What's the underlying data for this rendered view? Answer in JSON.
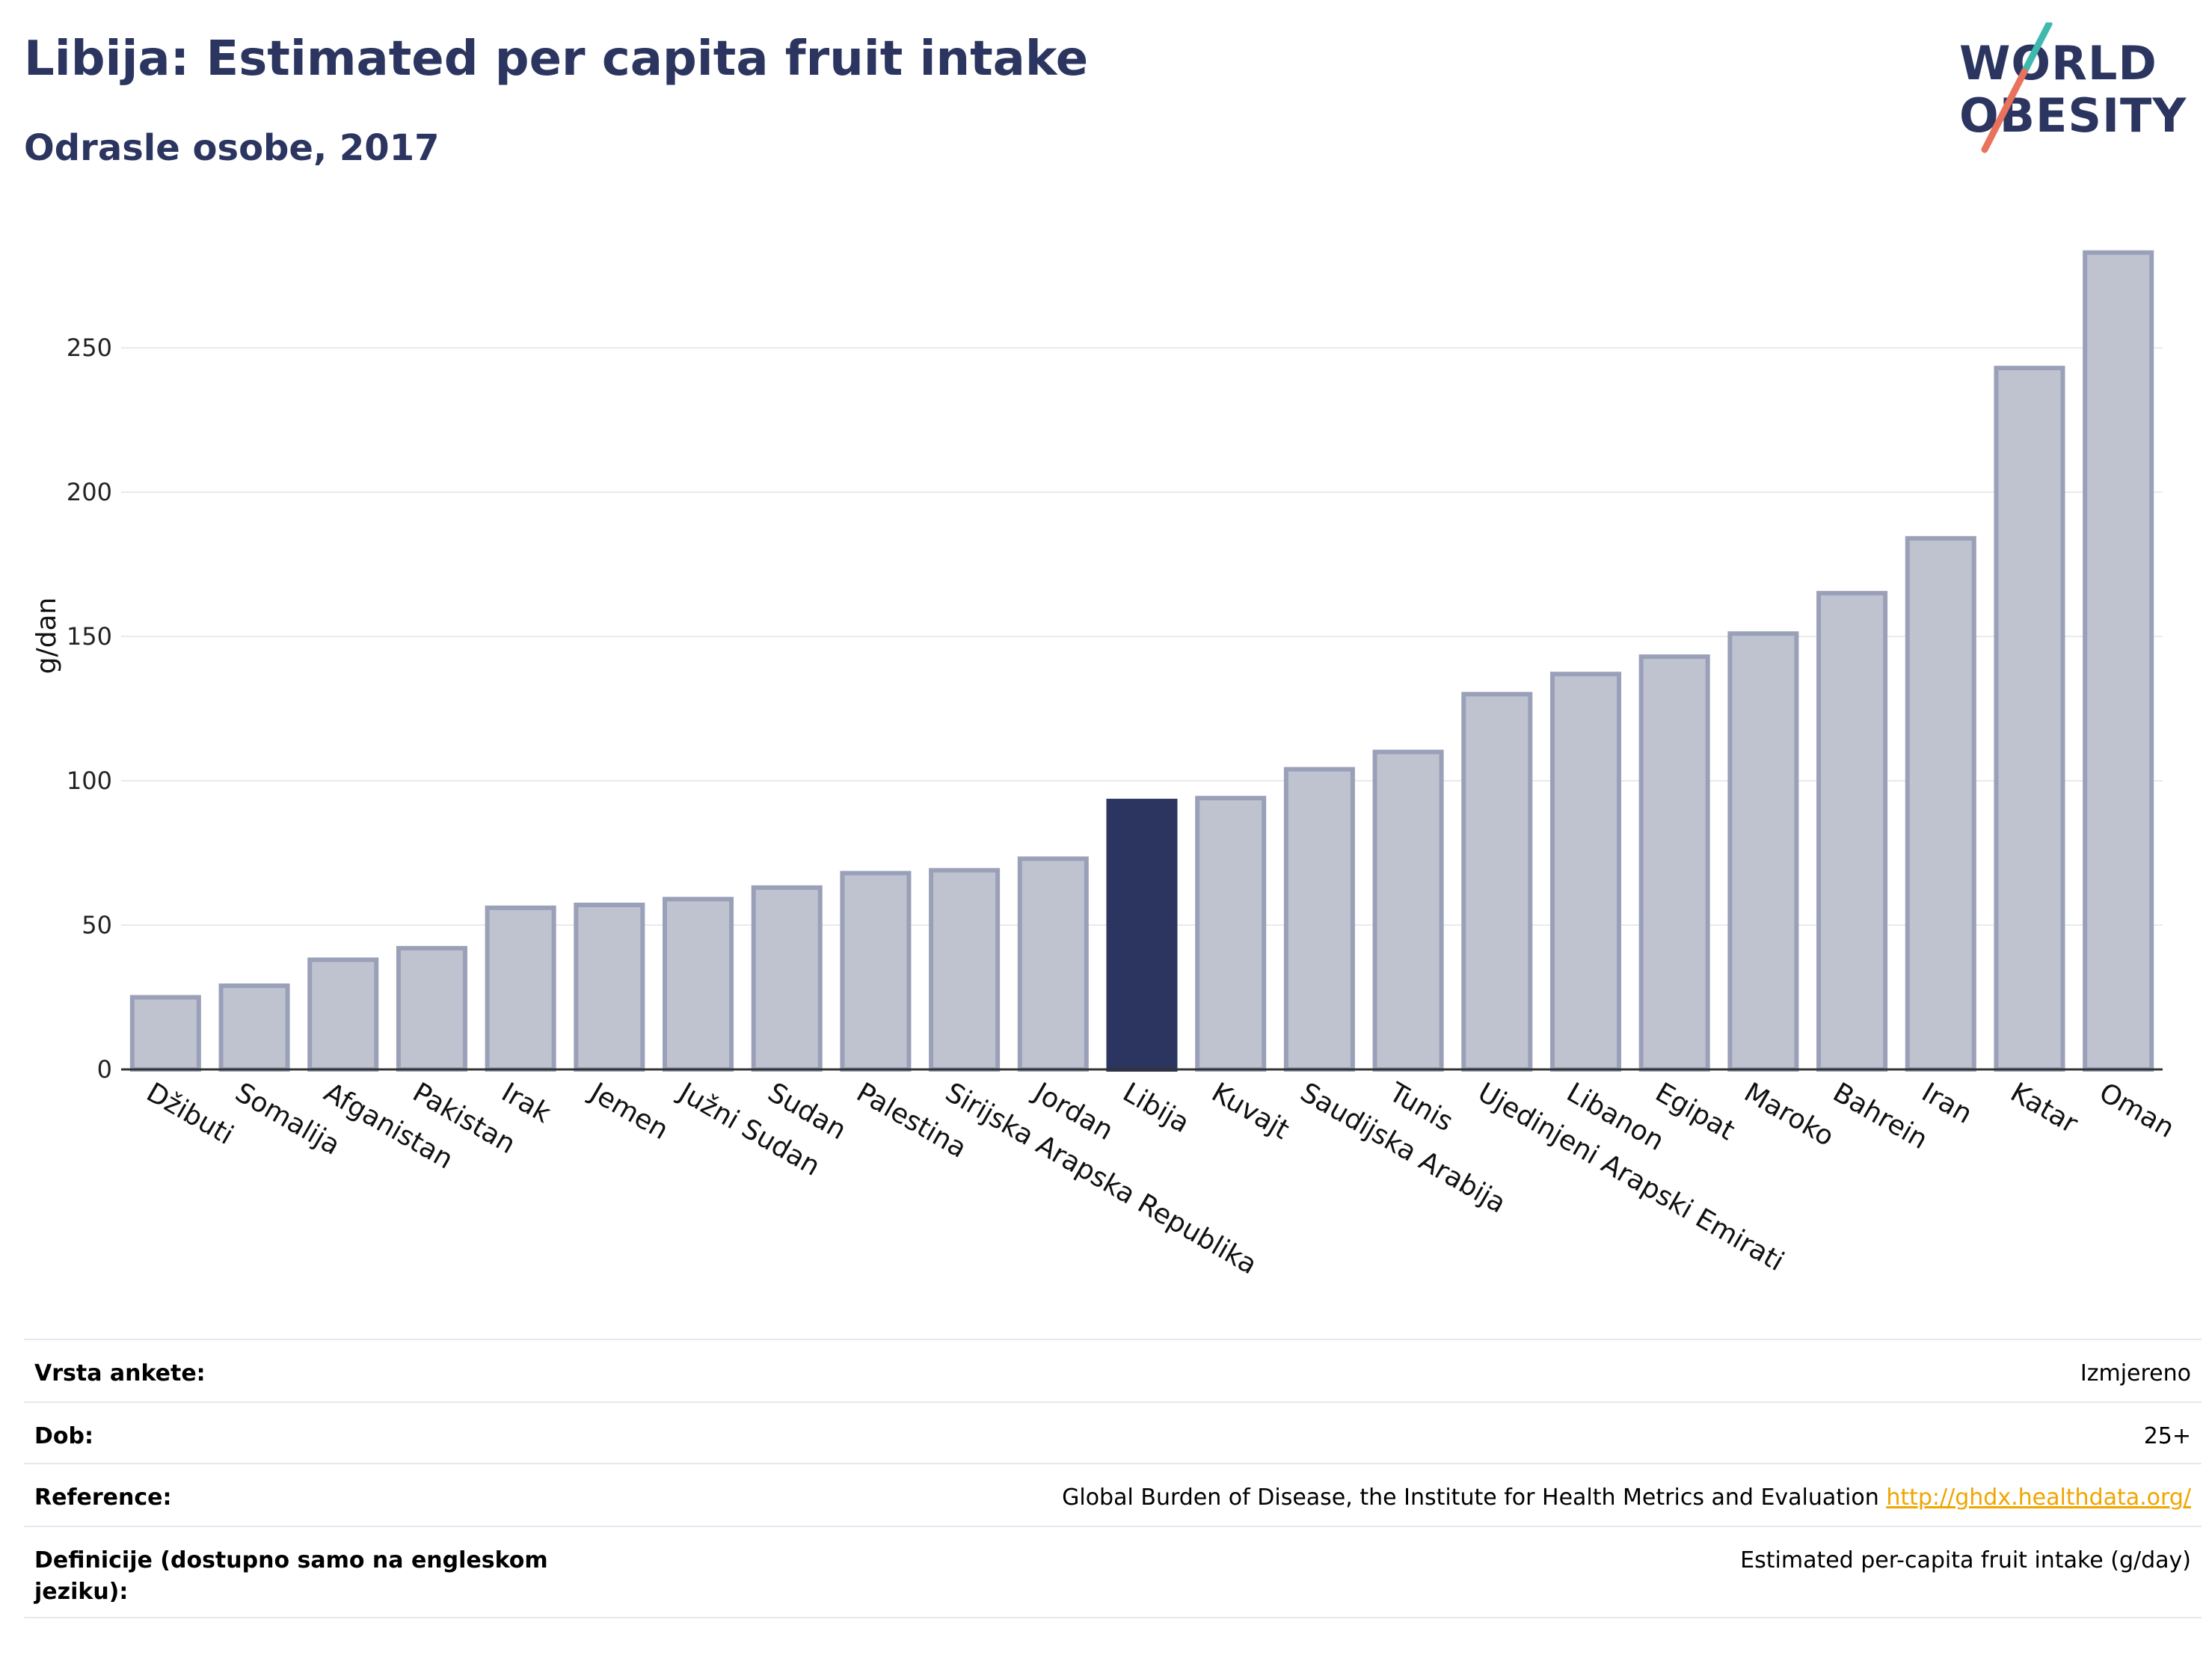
{
  "header": {
    "title": "Libija: Estimated per capita fruit intake",
    "subtitle": "Odrasle osobe, 2017"
  },
  "logo": {
    "line1": "WORLD",
    "line2": "OBESITY"
  },
  "colors": {
    "brand": "#2b3560",
    "bar": "#bfc3d0",
    "bar_border": "#9aa0b8",
    "highlight": "#2b3560",
    "grid": "#e9eaef",
    "logo_teal": "#3fb8b0",
    "logo_red": "#e8725c",
    "link": "#f0a500"
  },
  "chart_data": {
    "type": "bar",
    "title": "Libija: Estimated per capita fruit intake",
    "subtitle": "Odrasle osobe, 2017",
    "ylabel": "g/dan",
    "xlabel": "",
    "ylim": [
      0,
      285
    ],
    "yticks": [
      0,
      50,
      100,
      150,
      200,
      250
    ],
    "grid": true,
    "highlight": "Libija",
    "categories": [
      "Džibuti",
      "Somalija",
      "Afganistan",
      "Pakistan",
      "Irak",
      "Jemen",
      "Južni Sudan",
      "Sudan",
      "Palestina",
      "Sirijska Arapska Republika",
      "Jordan",
      "Libija",
      "Kuvajt",
      "Saudijska Arabija",
      "Tunis",
      "Ujedinjeni Arapski Emirati",
      "Libanon",
      "Egipat",
      "Maroko",
      "Bahrein",
      "Iran",
      "Katar",
      "Oman"
    ],
    "values": [
      25,
      29,
      38,
      42,
      56,
      57,
      59,
      63,
      68,
      69,
      73,
      93,
      94,
      104,
      110,
      130,
      137,
      143,
      151,
      165,
      184,
      243,
      283
    ]
  },
  "info": {
    "survey_type_label": "Vrsta ankete:",
    "survey_type_value": "Izmjereno",
    "age_label": "Dob:",
    "age_value": "25+",
    "reference_label": "Reference:",
    "reference_value": "Global Burden of Disease, the Institute for Health Metrics and Evaluation",
    "reference_link": "http://ghdx.healthdata.org/",
    "definition_label": "Definicije (dostupno samo na engleskom jeziku):",
    "definition_value": "Estimated per-capita fruit intake (g/day)"
  }
}
